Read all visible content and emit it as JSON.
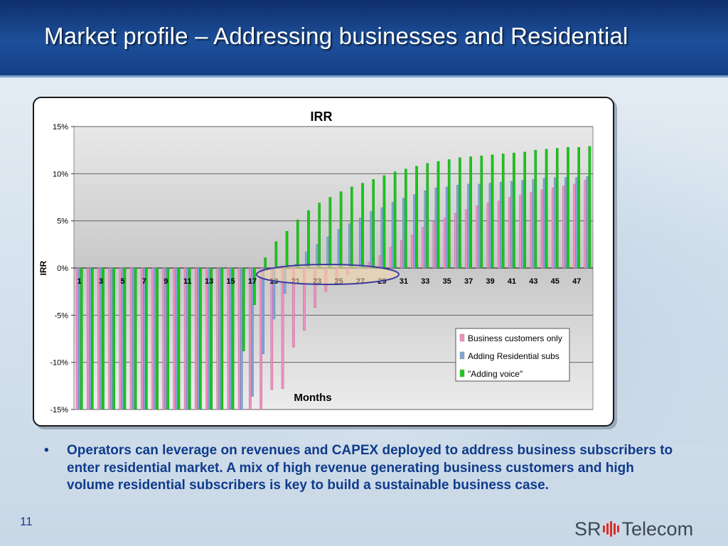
{
  "slide": {
    "title": "Market profile – Addressing businesses and Residential",
    "bullet_marker": "•",
    "bullet_text": "Operators can leverage on revenues and CAPEX deployed to address business subscribers to enter residential market. A mix of high revenue generating business customers and high volume residential subscribers is key to build a sustainable business case.",
    "page_number": "11",
    "logo_left": "SR",
    "logo_right": "Telecom"
  },
  "colors": {
    "header": "#1d4f9a",
    "bullet_text": "#0f3b8c",
    "plot_background": "#c8c8c8",
    "business_series": "#f08fc0",
    "residential_series": "#7fa6d6",
    "voice_series": "#19c819",
    "highlight_ellipse": "#3a3aa0",
    "highlight_fill": "#f6d8a8",
    "logo_red": "#d9312b"
  },
  "chart_data": {
    "type": "bar",
    "title": "IRR",
    "xlabel": "Months",
    "ylabel": "IRR",
    "ylim": [
      -15,
      15
    ],
    "yticks": [
      "15%",
      "10%",
      "5%",
      "0%",
      "-5%",
      "-10%",
      "-15%"
    ],
    "ytick_values": [
      15,
      10,
      5,
      0,
      -5,
      -10,
      -15
    ],
    "categories": [
      1,
      2,
      3,
      4,
      5,
      6,
      7,
      8,
      9,
      10,
      11,
      12,
      13,
      14,
      15,
      16,
      17,
      18,
      19,
      20,
      21,
      22,
      23,
      24,
      25,
      26,
      27,
      28,
      29,
      30,
      31,
      32,
      33,
      34,
      35,
      36,
      37,
      38,
      39,
      40,
      41,
      42,
      43,
      44,
      45,
      46,
      47,
      48
    ],
    "xtick_labels": [
      "1",
      "3",
      "5",
      "7",
      "9",
      "11",
      "13",
      "15",
      "17",
      "19",
      "21",
      "23",
      "25",
      "27",
      "29",
      "31",
      "33",
      "35",
      "37",
      "39",
      "41",
      "43",
      "45",
      "47"
    ],
    "grid": true,
    "legend_position": "bottom-right",
    "series": [
      {
        "name": "Business customers only",
        "values": [
          -15,
          -15,
          -15,
          -15,
          -15,
          -15,
          -15,
          -15,
          -15,
          -15,
          -15,
          -15,
          -15,
          -15,
          -15,
          -15,
          -15,
          -15,
          -12.9,
          -12.8,
          -8.4,
          -6.6,
          -4.2,
          -2.5,
          -1.5,
          -0.7,
          0,
          0.6,
          1.3,
          2.2,
          2.9,
          3.5,
          4.3,
          4.9,
          5.3,
          5.8,
          6.2,
          6.6,
          6.9,
          7.1,
          7.5,
          7.7,
          8.0,
          8.3,
          8.5,
          8.7,
          8.9,
          9.3
        ]
      },
      {
        "name": "Adding Residential subs",
        "values": [
          -15,
          -15,
          -15,
          -15,
          -15,
          -15,
          -15,
          -15,
          -15,
          -15,
          -15,
          -15,
          -15,
          -15,
          -15,
          -15,
          -13.6,
          -9.1,
          -5.4,
          -2.7,
          0.4,
          1.7,
          2.5,
          3.3,
          4.1,
          4.7,
          5.3,
          6.0,
          6.4,
          7.0,
          7.4,
          7.8,
          8.2,
          8.5,
          8.6,
          8.8,
          8.9,
          8.9,
          9.0,
          9.1,
          9.2,
          9.3,
          9.4,
          9.5,
          9.6,
          9.6,
          9.6,
          9.7
        ]
      },
      {
        "name": "\"Adding voice\"",
        "values": [
          -15,
          -15,
          -15,
          -15,
          -15,
          -15,
          -15,
          -15,
          -15,
          -15,
          -15,
          -15,
          -15,
          -15,
          -15,
          -8.8,
          -3.9,
          1.1,
          2.8,
          3.9,
          5.1,
          6.1,
          6.9,
          7.5,
          8.1,
          8.6,
          9.0,
          9.4,
          9.8,
          10.2,
          10.5,
          10.8,
          11.1,
          11.3,
          11.5,
          11.7,
          11.8,
          11.9,
          12.0,
          12.1,
          12.2,
          12.3,
          12.5,
          12.6,
          12.7,
          12.8,
          12.8,
          12.9
        ]
      }
    ]
  }
}
